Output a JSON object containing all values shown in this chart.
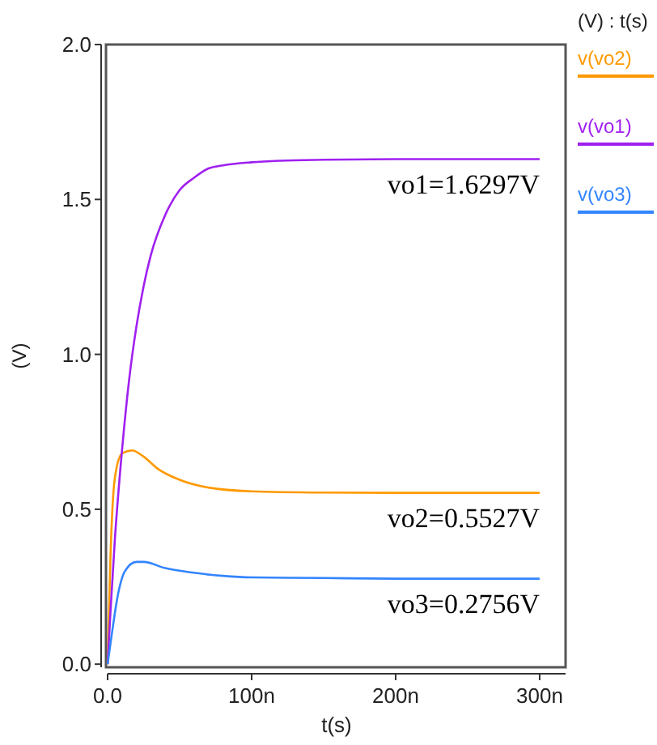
{
  "chart_data": {
    "type": "line",
    "xlabel": "t(s)",
    "ylabel": "(V)",
    "legend_title": "(V) : t(s)",
    "legend": "right",
    "grid": false,
    "marker": "none",
    "line_style": "solid",
    "xlim": [
      0,
      318
    ],
    "xticks": [
      {
        "value": 0,
        "label": "0.0"
      },
      {
        "value": 100,
        "label": "100n"
      },
      {
        "value": 200,
        "label": "200n"
      },
      {
        "value": 300,
        "label": "300n"
      }
    ],
    "ylim": [
      -0.01,
      2.0
    ],
    "yticks": [
      {
        "value": 0,
        "label": "0.0"
      },
      {
        "value": 0.5,
        "label": "0.5"
      },
      {
        "value": 1,
        "label": "1.0"
      },
      {
        "value": 1.5,
        "label": "1.5"
      },
      {
        "value": 2,
        "label": "2.0"
      }
    ],
    "series": [
      {
        "name": "v(vo2)",
        "color": "#ff9900",
        "x": [
          0,
          2,
          5,
          10,
          17,
          25,
          35,
          50,
          70,
          100,
          150,
          200,
          300
        ],
        "values": [
          0,
          0.35,
          0.6,
          0.68,
          0.69,
          0.67,
          0.63,
          0.595,
          0.57,
          0.558,
          0.554,
          0.553,
          0.553
        ]
      },
      {
        "name": "v(vo1)",
        "color": "#a020f0",
        "x": [
          0,
          2,
          5,
          10,
          15,
          20,
          25,
          30,
          40,
          50,
          60,
          70,
          80,
          100,
          120,
          150,
          200,
          250,
          300
        ],
        "values": [
          0,
          0.17,
          0.4,
          0.69,
          0.92,
          1.09,
          1.22,
          1.32,
          1.45,
          1.53,
          1.57,
          1.6,
          1.61,
          1.62,
          1.625,
          1.628,
          1.63,
          1.63,
          1.63
        ]
      },
      {
        "name": "v(vo3)",
        "color": "#3385ff",
        "x": [
          0,
          3,
          7,
          12,
          20,
          25,
          40,
          60,
          80,
          100,
          150,
          200,
          300
        ],
        "values": [
          0,
          0.1,
          0.22,
          0.3,
          0.33,
          0.33,
          0.31,
          0.295,
          0.285,
          0.28,
          0.278,
          0.276,
          0.276
        ]
      }
    ],
    "annotations": [
      {
        "text": "vo1=1.6297V",
        "y": 1.6297
      },
      {
        "text": "vo2=0.5527V",
        "y": 0.5527
      },
      {
        "text": "vo3=0.2756V",
        "y": 0.2756
      }
    ]
  }
}
